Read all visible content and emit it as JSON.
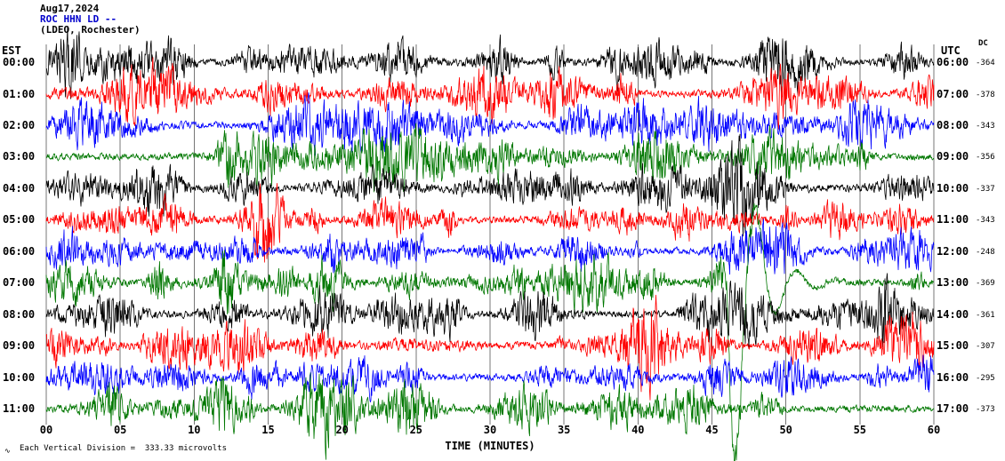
{
  "title": {
    "line1": "Aug17,2024",
    "line2": "ROC HHN LD --",
    "line3": "(LDEO, Rochester)"
  },
  "axes": {
    "left_header": "EST",
    "right_header": "UTC",
    "dc_header": "DC",
    "x_ticks": [
      "00",
      "05",
      "10",
      "15",
      "20",
      "25",
      "30",
      "35",
      "40",
      "45",
      "50",
      "55",
      "60"
    ],
    "x_label": "TIME (MINUTES)"
  },
  "footer": {
    "wiggle_mark": "∿",
    "scale_note": "Each Vertical Division =  333.33 microvolts"
  },
  "chart_data": {
    "type": "line",
    "kind": "seismogram-helicorder",
    "station": "ROC HHN LD",
    "date": "Aug17,2024",
    "x_range_minutes": [
      0,
      60
    ],
    "minutes_per_row": 60,
    "grid_interval_minutes": 5,
    "vertical_division_microvolts": 333.33,
    "trace_colors_cycle": [
      "#000000",
      "#ff0000",
      "#0000ff",
      "#007700"
    ],
    "rows": [
      {
        "est": "00:00",
        "utc": "06:00",
        "dc": "-364",
        "color": "#000000"
      },
      {
        "est": "01:00",
        "utc": "07:00",
        "dc": "-378",
        "color": "#ff0000"
      },
      {
        "est": "02:00",
        "utc": "08:00",
        "dc": "-343",
        "color": "#0000ff"
      },
      {
        "est": "03:00",
        "utc": "09:00",
        "dc": "-356",
        "color": "#007700"
      },
      {
        "est": "04:00",
        "utc": "10:00",
        "dc": "-337",
        "color": "#000000"
      },
      {
        "est": "05:00",
        "utc": "11:00",
        "dc": "-343",
        "color": "#ff0000"
      },
      {
        "est": "06:00",
        "utc": "12:00",
        "dc": "-248",
        "color": "#0000ff"
      },
      {
        "est": "07:00",
        "utc": "13:00",
        "dc": "-369",
        "color": "#007700"
      },
      {
        "est": "08:00",
        "utc": "14:00",
        "dc": "-361",
        "color": "#000000"
      },
      {
        "est": "09:00",
        "utc": "15:00",
        "dc": "-307",
        "color": "#ff0000"
      },
      {
        "est": "10:00",
        "utc": "16:00",
        "dc": "-295",
        "color": "#0000ff"
      },
      {
        "est": "11:00",
        "utc": "17:00",
        "dc": "-373",
        "color": "#007700"
      }
    ],
    "event": {
      "row_index": 7,
      "minute": 46,
      "description": "large amplitude spike extending below plot"
    }
  }
}
